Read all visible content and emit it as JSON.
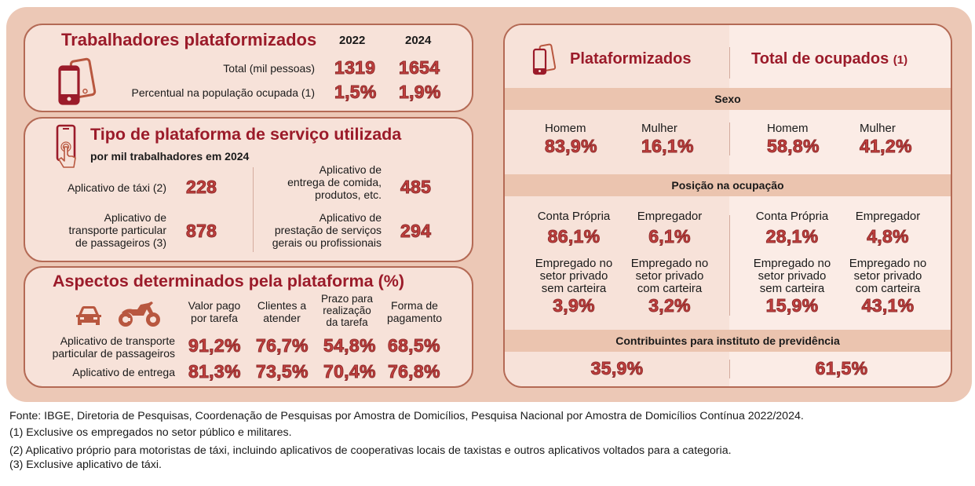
{
  "colors": {
    "outer_bg": "#ecc8b6",
    "panel_bg": "#f7e2d9",
    "panel_border": "#b46a55",
    "title_red": "#9b1b2a",
    "value_red": "#c2403e",
    "band_bg": "#ebc4af",
    "icon_brown": "#b8573f"
  },
  "trabalhadores": {
    "title": "Trabalhadores plataformizados",
    "icon": "smartphones-icon",
    "years": [
      "2022",
      "2024"
    ],
    "rows": [
      {
        "label": "Total (mil pessoas)",
        "values": [
          "1319",
          "1654"
        ]
      },
      {
        "label": "Percentual na população ocupada (1)",
        "values": [
          "1,5%",
          "1,9%"
        ]
      }
    ]
  },
  "tipo_plataforma": {
    "title": "Tipo de plataforma de serviço utilizada",
    "subtitle": "por mil trabalhadores em 2024",
    "icon": "touch-phone-icon",
    "items": [
      {
        "label_lines": [
          "Aplicativo de táxi (2)"
        ],
        "value": "228"
      },
      {
        "label_lines": [
          "Aplicativo de",
          "transporte particular",
          "de passageiros (3)"
        ],
        "value": "878"
      },
      {
        "label_lines": [
          "Aplicativo de",
          "entrega de comida,",
          "produtos, etc."
        ],
        "value": "485"
      },
      {
        "label_lines": [
          "Aplicativo de",
          "prestação de serviços",
          "gerais ou profissionais"
        ],
        "value": "294"
      }
    ]
  },
  "aspectos": {
    "title": "Aspectos determinados pela plataforma (%)",
    "icons": [
      "car-icon",
      "motorcycle-icon"
    ],
    "columns": [
      [
        "Valor pago",
        "por tarefa"
      ],
      [
        "Clientes a",
        "atender"
      ],
      [
        "Prazo para",
        "realização",
        "da tarefa"
      ],
      [
        "Forma de",
        "pagamento"
      ]
    ],
    "rows": [
      {
        "label_lines": [
          "Aplicativo de transporte",
          "particular de passageiros"
        ],
        "values": [
          "91,2%",
          "76,7%",
          "54,8%",
          "68,5%"
        ]
      },
      {
        "label_lines": [
          "Aplicativo de entrega"
        ],
        "values": [
          "81,3%",
          "73,5%",
          "70,4%",
          "76,8%"
        ]
      }
    ]
  },
  "comparacao": {
    "header_left": "Plataformizados",
    "header_right": "Total de ocupados",
    "header_right_note": "(1)",
    "icon": "smartphones-icon",
    "sexo": {
      "title": "Sexo",
      "plataformizados": [
        {
          "label": "Homem",
          "value": "83,9%"
        },
        {
          "label": "Mulher",
          "value": "16,1%"
        }
      ],
      "total": [
        {
          "label": "Homem",
          "value": "58,8%"
        },
        {
          "label": "Mulher",
          "value": "41,2%"
        }
      ]
    },
    "posicao": {
      "title": "Posição na ocupação",
      "plataformizados": [
        {
          "label_lines": [
            "Conta Própria"
          ],
          "value": "86,1%"
        },
        {
          "label_lines": [
            "Empregador"
          ],
          "value": "6,1%"
        },
        {
          "label_lines": [
            "Empregado no",
            "setor privado",
            "sem carteira"
          ],
          "value": "3,9%"
        },
        {
          "label_lines": [
            "Empregado no",
            "setor privado",
            "com carteira"
          ],
          "value": "3,2%"
        }
      ],
      "total": [
        {
          "label_lines": [
            "Conta Própria"
          ],
          "value": "28,1%"
        },
        {
          "label_lines": [
            "Empregador"
          ],
          "value": "4,8%"
        },
        {
          "label_lines": [
            "Empregado no",
            "setor privado",
            "sem carteira"
          ],
          "value": "15,9%"
        },
        {
          "label_lines": [
            "Empregado no",
            "setor privado",
            "com carteira"
          ],
          "value": "43,1%"
        }
      ]
    },
    "previdencia": {
      "title": "Contribuintes para instituto de previdência",
      "plataformizados": "35,9%",
      "total": "61,5%"
    }
  },
  "footer": {
    "source": "Fonte: IBGE, Diretoria de Pesquisas, Coordenação de Pesquisas por Amostra de Domicílios, Pesquisa Nacional por Amostra de Domicílios Contínua 2022/2024.",
    "notes": [
      "(1) Exclusive os empregados no setor público e militares.",
      "(2) Aplicativo próprio para motoristas de táxi, incluindo aplicativos de cooperativas locais de taxistas e outros aplicativos voltados para a categoria.",
      "(3) Exclusive aplicativo de táxi."
    ]
  }
}
